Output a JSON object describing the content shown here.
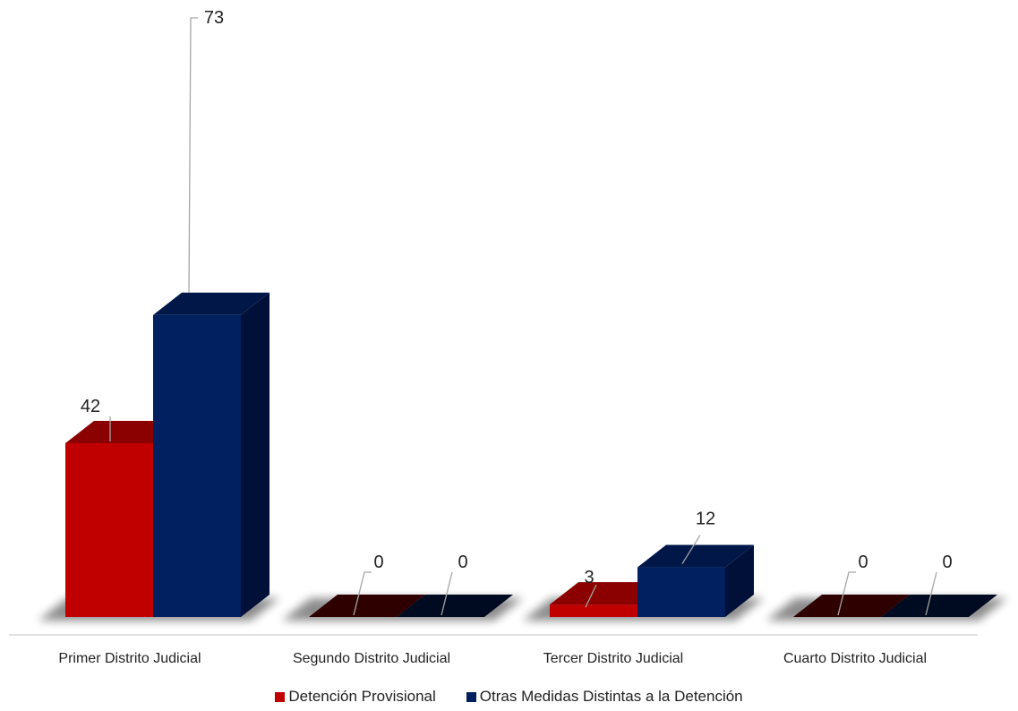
{
  "chart_data": {
    "type": "bar",
    "categories": [
      "Primer Distrito Judicial",
      "Segundo Distrito Judicial",
      "Tercer Distrito Judicial",
      "Cuarto Distrito Judicial"
    ],
    "series": [
      {
        "name": "Detención Provisional",
        "values": [
          42,
          0,
          3,
          0
        ],
        "color": "#C00000",
        "top_color": "#8B0000",
        "side_color": "#6E0000"
      },
      {
        "name": "Otras Medidas Distintas a la Detención",
        "values": [
          73,
          0,
          12,
          0
        ],
        "color": "#002060",
        "top_color": "#001748",
        "side_color": "#001038"
      }
    ],
    "data_labels": [
      "42",
      "0",
      "3",
      "0",
      "73",
      "0",
      "12",
      "0"
    ],
    "title": "",
    "xlabel": "",
    "ylabel": "",
    "ylim": [
      0,
      73
    ],
    "grid": false,
    "legend_position": "bottom",
    "style": "3d-clustered-column"
  }
}
